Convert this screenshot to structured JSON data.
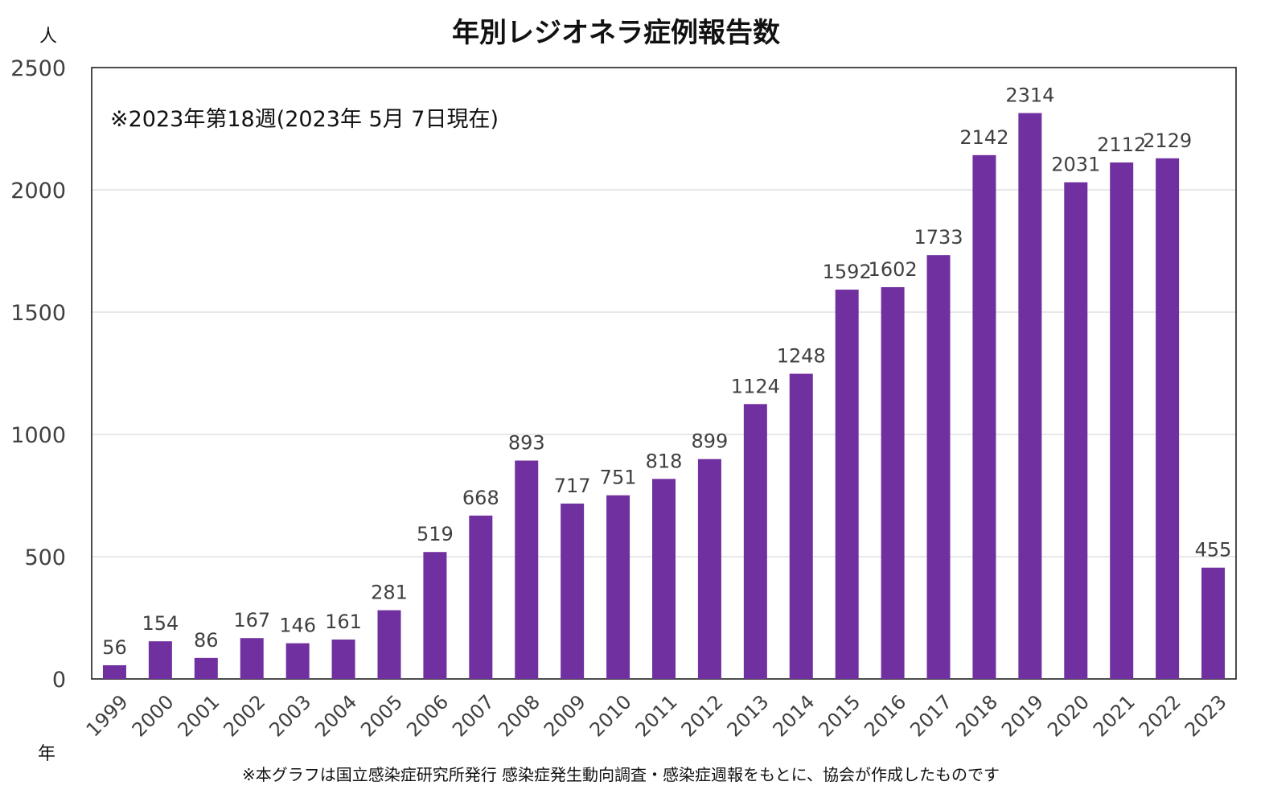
{
  "chart_data": {
    "type": "bar",
    "title": "年別レジオネラ症例報告数",
    "ylabel": "人",
    "xlabel": "年",
    "ylim": [
      0,
      2500
    ],
    "yticks": [
      0,
      500,
      1000,
      1500,
      2000,
      2500
    ],
    "grid": true,
    "bar_color": "#7030a0",
    "categories": [
      "1999",
      "2000",
      "2001",
      "2002",
      "2003",
      "2004",
      "2005",
      "2006",
      "2007",
      "2008",
      "2009",
      "2010",
      "2011",
      "2012",
      "2013",
      "2014",
      "2015",
      "2016",
      "2017",
      "2018",
      "2019",
      "2020",
      "2021",
      "2022",
      "2023"
    ],
    "values": [
      56,
      154,
      86,
      167,
      146,
      161,
      281,
      519,
      668,
      893,
      717,
      751,
      818,
      899,
      1124,
      1248,
      1592,
      1602,
      1733,
      2142,
      2314,
      2031,
      2112,
      2129,
      455
    ],
    "annotation": "※2023年第18週(2023年 5月 7日現在)",
    "footnote": "※本グラフは国立感染症研究所発行 感染症発生動向調査・感染症週報をもとに、協会が作成したものです"
  }
}
